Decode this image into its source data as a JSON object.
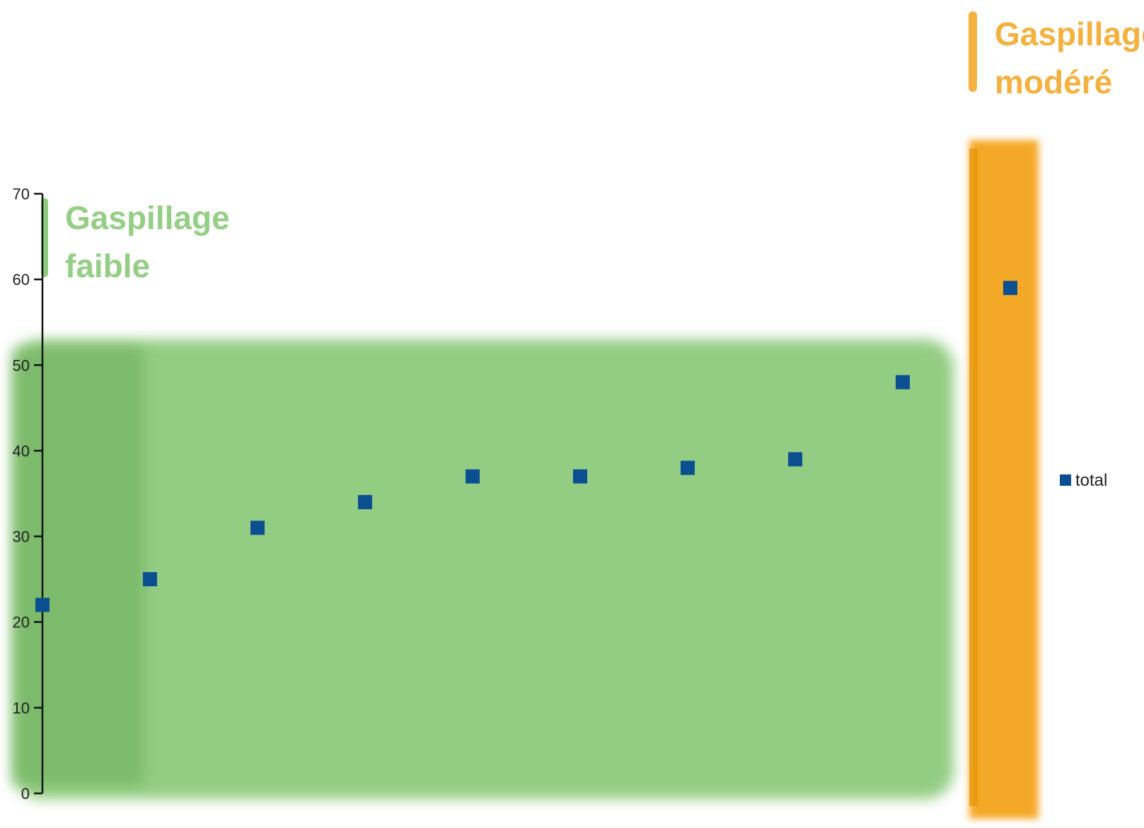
{
  "chart_data": {
    "type": "scatter",
    "title": "",
    "xlabel": "",
    "ylabel": "",
    "ylim": [
      0,
      70
    ],
    "y_ticks": [
      0,
      10,
      20,
      30,
      40,
      50,
      60,
      70
    ],
    "grid": false,
    "legend_position": "right",
    "series": [
      {
        "name": "total",
        "color": "#0b4f91",
        "values": [
          22,
          25,
          31,
          34,
          37,
          37,
          38,
          39,
          48,
          59
        ]
      }
    ],
    "zones": [
      {
        "label_line1": "Gaspillage",
        "label_line2": "faible",
        "color": "#7bc267"
      },
      {
        "label_line1": "Gaspillage",
        "label_line2": "modéré",
        "color": "#f4a41e"
      }
    ]
  }
}
